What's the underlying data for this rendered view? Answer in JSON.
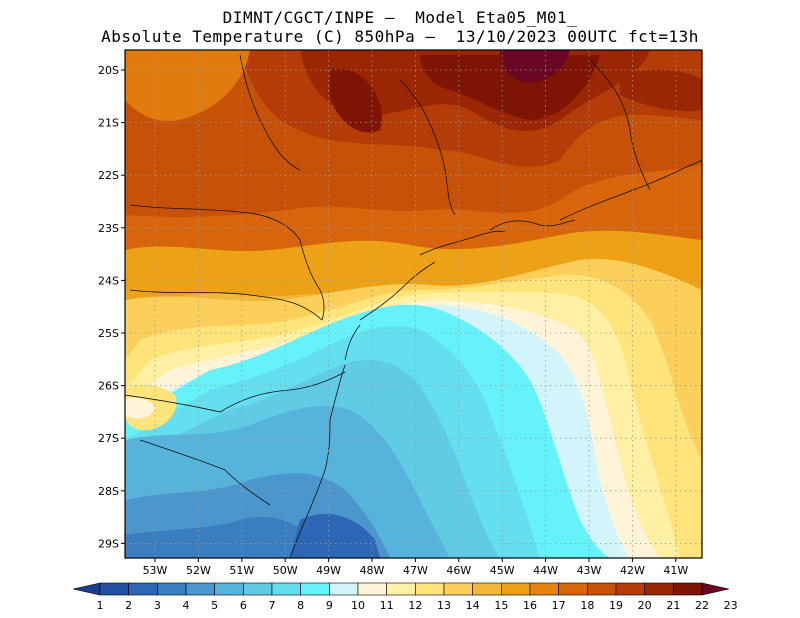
{
  "header": {
    "line1": "DIMNT/CGCT/INPE –  Model Eta05_M01_",
    "line2": "Absolute Temperature (C) 850hPa –  13/10/2023 00UTC fct=13h"
  },
  "map": {
    "lat_labels": [
      "20S",
      "21S",
      "22S",
      "23S",
      "24S",
      "25S",
      "26S",
      "27S",
      "28S",
      "29S"
    ],
    "lon_labels": [
      "53W",
      "52W",
      "51W",
      "50W",
      "49W",
      "48W",
      "47W",
      "46W",
      "45W",
      "44W",
      "43W",
      "42W",
      "41W"
    ]
  },
  "colorbar": {
    "labels": [
      "1",
      "2",
      "3",
      "4",
      "5",
      "6",
      "7",
      "8",
      "9",
      "10",
      "11",
      "12",
      "13",
      "14",
      "15",
      "16",
      "17",
      "18",
      "19",
      "20",
      "21",
      "22",
      "23"
    ],
    "colors": [
      "#1c3d8f",
      "#2452a3",
      "#2c66b4",
      "#3a7ebf",
      "#4b97cd",
      "#56b3db",
      "#5fcbe5",
      "#63dff0",
      "#66f2fa",
      "#d2f4fb",
      "#fff4d8",
      "#fff0a3",
      "#ffe47b",
      "#fccf5a",
      "#f3b73c",
      "#eda115",
      "#e6820e",
      "#d8650c",
      "#c85108",
      "#b43c06",
      "#9a2604",
      "#7e1404",
      "#6a0724"
    ]
  }
}
